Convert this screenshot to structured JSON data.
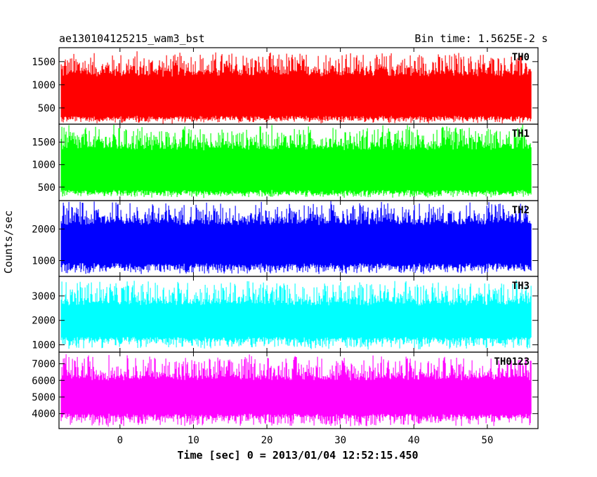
{
  "chart_data": {
    "type": "line",
    "title": "ae130104125215_wam3_bst",
    "subtitle": "Bin time: 1.5625E-2 s",
    "xlabel": "Time [sec] 0 = 2013/01/04 12:52:15.450",
    "ylabel": "Counts/sec",
    "xlim": [
      -8.3,
      56.9
    ],
    "x_data_range": [
      -8,
      56
    ],
    "x_ticks": [
      0,
      10,
      20,
      30,
      40,
      50
    ],
    "grid": false,
    "legend": "none",
    "panels": [
      {
        "name": "TH0",
        "color": "#ff0000",
        "ylim": [
          150,
          1800
        ],
        "y_ticks": [
          500,
          1000,
          1500
        ],
        "band": {
          "min": 150,
          "typical_low": 250,
          "typical_high": 1300,
          "max": 1750
        }
      },
      {
        "name": "TH1",
        "color": "#00ff00",
        "ylim": [
          200,
          1900
        ],
        "y_ticks": [
          500,
          1000,
          1500
        ],
        "band": {
          "min": 250,
          "typical_low": 350,
          "typical_high": 1450,
          "max": 1900
        }
      },
      {
        "name": "TH2",
        "color": "#0000ff",
        "ylim": [
          500,
          2900
        ],
        "y_ticks": [
          1000,
          2000
        ],
        "band": {
          "min": 550,
          "typical_low": 800,
          "typical_high": 2300,
          "max": 2900
        }
      },
      {
        "name": "TH3",
        "color": "#00ffff",
        "ylim": [
          700,
          3800
        ],
        "y_ticks": [
          1000,
          2000,
          3000
        ],
        "band": {
          "min": 800,
          "typical_low": 1200,
          "typical_high": 2800,
          "max": 3700
        }
      },
      {
        "name": "TH0123",
        "color": "#ff00ff",
        "ylim": [
          3100,
          7700
        ],
        "y_ticks": [
          4000,
          5000,
          6000,
          7000
        ],
        "band": {
          "min": 3200,
          "typical_low": 3800,
          "typical_high": 6300,
          "max": 7600
        }
      }
    ]
  }
}
